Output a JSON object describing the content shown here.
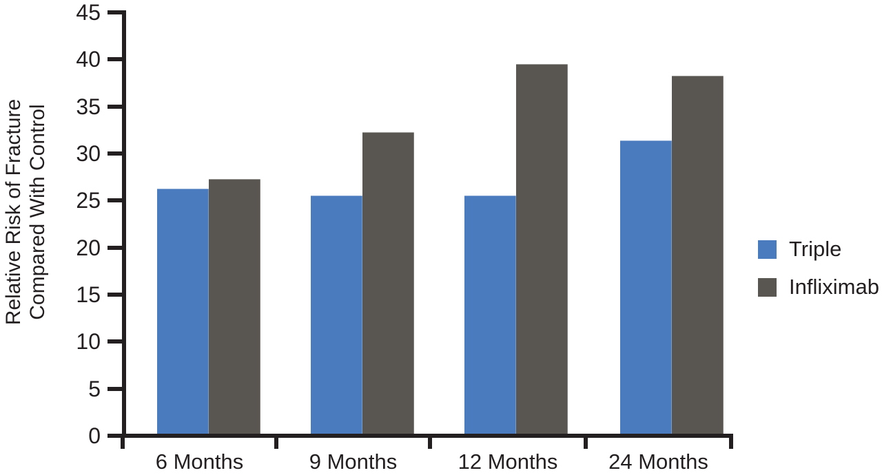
{
  "chart_data": {
    "type": "bar",
    "title": "",
    "categories": [
      "6 Months",
      "9 Months",
      "12 Months",
      "24 Months"
    ],
    "series": [
      {
        "name": "Triple",
        "color": "#4A7BBE",
        "values": [
          26.1,
          25.4,
          25.4,
          31.2
        ]
      },
      {
        "name": "Infliximab",
        "color": "#595551",
        "values": [
          27.1,
          32.1,
          39.4,
          38.1
        ]
      }
    ],
    "ylabel_lines": [
      "Relative Risk of Fracture",
      "Compared With Control"
    ],
    "xlabel": "",
    "yticks": [
      0,
      5,
      10,
      15,
      20,
      25,
      30,
      35,
      40,
      45
    ],
    "ylim": [
      0,
      45
    ],
    "grid": false,
    "legend_position": "right",
    "axis_color": "#231F20",
    "background": "#FFFFFF"
  }
}
